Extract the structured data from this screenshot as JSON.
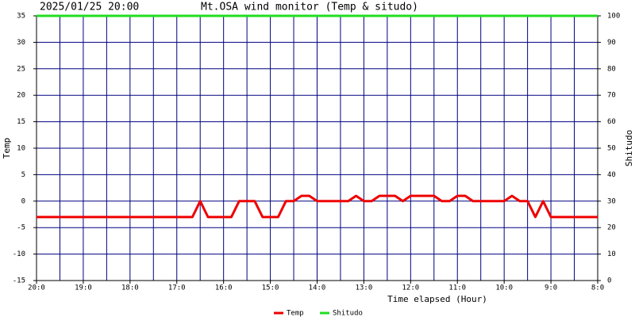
{
  "chart_data": {
    "type": "line",
    "title": "Mt.OSA wind monitor (Temp & situdo)",
    "subtitle": "2025/01/25 20:00",
    "x_label": "Time elapsed (Hour)",
    "y_label": "Temp",
    "y2_label": "Shitudo",
    "categories": [
      "20:0",
      null,
      null,
      null,
      null,
      null,
      "19:0",
      null,
      null,
      null,
      null,
      null,
      "18:0",
      null,
      null,
      null,
      null,
      null,
      "17:0",
      null,
      null,
      null,
      null,
      null,
      "16:0",
      null,
      null,
      null,
      null,
      null,
      "15:0",
      null,
      null,
      null,
      null,
      null,
      "14:0",
      null,
      null,
      null,
      null,
      null,
      "13:0",
      null,
      null,
      null,
      null,
      null,
      "12:0",
      null,
      null,
      null,
      null,
      null,
      "11:0",
      null,
      null,
      null,
      null,
      null,
      "10:0",
      null,
      null,
      null,
      null,
      null,
      "9:0",
      null,
      null,
      null,
      null,
      null,
      "8:0"
    ],
    "series": [
      {
        "name": "Temp",
        "color": "#ee0000",
        "values": [
          -3,
          -3,
          -3,
          -3,
          -3,
          -3,
          -3,
          -3,
          -3,
          -3,
          -3,
          -3,
          -3,
          -3,
          -3,
          -3,
          -3,
          -3,
          -3,
          -3,
          -3,
          0,
          -3,
          -3,
          -3,
          -3,
          0,
          0,
          0,
          -3,
          -3,
          -3,
          0,
          0,
          1,
          1,
          0,
          0,
          0,
          0,
          0,
          1,
          0,
          0,
          1,
          1,
          1,
          0,
          1,
          1,
          1,
          1,
          0,
          0,
          1,
          1,
          0,
          0,
          0,
          0,
          0,
          1,
          0,
          0,
          -3,
          0,
          -3,
          -3,
          -3,
          -3,
          -3,
          -3,
          -3
        ]
      },
      {
        "name": "Shitudo",
        "color": "#22dd22",
        "axis": "y2",
        "values": [
          100,
          100,
          100,
          100,
          100,
          100,
          100,
          100,
          100,
          100,
          100,
          100,
          100,
          100,
          100,
          100,
          100,
          100,
          100,
          100,
          100,
          100,
          100,
          100,
          100,
          100,
          100,
          100,
          100,
          100,
          100,
          100,
          100,
          100,
          100,
          100,
          100,
          100,
          100,
          100,
          100,
          100,
          100,
          100,
          100,
          100,
          100,
          100,
          100,
          100,
          100,
          100,
          100,
          100,
          100,
          100,
          100,
          100,
          100,
          100,
          100,
          100,
          100,
          100,
          100,
          100,
          100,
          100,
          100,
          100,
          100,
          100,
          100
        ]
      }
    ],
    "ylim": [
      -15,
      35
    ],
    "yticks": [
      -15,
      -10,
      -5,
      0,
      5,
      10,
      15,
      20,
      25,
      30,
      35
    ],
    "y2lim": [
      0,
      100
    ],
    "y2ticks": [
      0,
      10,
      20,
      30,
      40,
      50,
      60,
      70,
      80,
      90,
      100
    ],
    "grid": true,
    "grid_color": "#000080",
    "x_grid_every": 3,
    "legend": "bottom"
  }
}
